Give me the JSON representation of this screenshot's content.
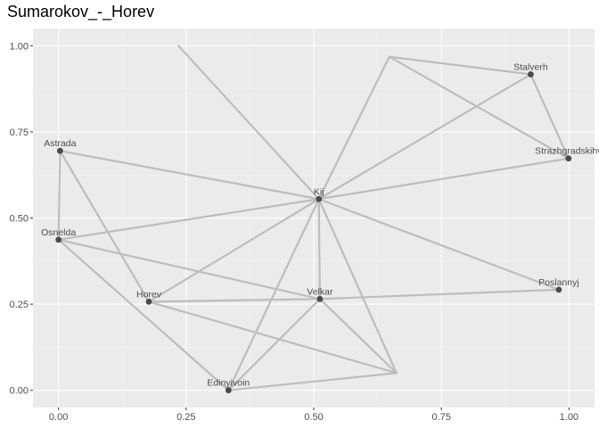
{
  "title": "Sumarokov_-_Horev",
  "chart_data": {
    "type": "network",
    "title": "Sumarokov_-_Horev",
    "xlim": [
      -0.05,
      1.05
    ],
    "ylim": [
      -0.05,
      1.05
    ],
    "x_ticks": [
      0.0,
      0.25,
      0.5,
      0.75,
      1.0
    ],
    "x_tick_labels": [
      "0.00",
      "0.25",
      "0.50",
      "0.75",
      "1.00"
    ],
    "y_ticks": [
      0.0,
      0.25,
      0.5,
      0.75,
      1.0
    ],
    "y_tick_labels": [
      "0.00",
      "0.25",
      "0.50",
      "0.75",
      "1.00"
    ],
    "grid": true,
    "nodes": [
      {
        "id": "Astrada",
        "label": "Astrada",
        "x": 0.003,
        "y": 0.695,
        "labeled": true
      },
      {
        "id": "Osnelda",
        "label": "Osnelda",
        "x": 0.0,
        "y": 0.437,
        "labeled": true
      },
      {
        "id": "Horev",
        "label": "Horev",
        "x": 0.177,
        "y": 0.257,
        "labeled": true
      },
      {
        "id": "Edinyivoin",
        "label": "Edinyivoin",
        "x": 0.333,
        "y": 0.0,
        "labeled": true
      },
      {
        "id": "Kij",
        "label": "Kij",
        "x": 0.51,
        "y": 0.555,
        "labeled": true
      },
      {
        "id": "Velkar",
        "label": "Velkar",
        "x": 0.512,
        "y": 0.265,
        "labeled": true
      },
      {
        "id": "Stalverh",
        "label": "Stalverh",
        "x": 0.925,
        "y": 0.917,
        "labeled": true
      },
      {
        "id": "Strazhgradskihv",
        "label": "Strazhgradskihv",
        "x": 0.999,
        "y": 0.673,
        "labeled": true
      },
      {
        "id": "Poslannyj",
        "label": "Poslannyj",
        "x": 0.98,
        "y": 0.292,
        "labeled": true
      },
      {
        "id": "n10",
        "label": "",
        "x": 0.235,
        "y": 1.0,
        "labeled": false
      },
      {
        "id": "n11",
        "label": "",
        "x": 0.648,
        "y": 0.968,
        "labeled": false
      },
      {
        "id": "n12",
        "label": "",
        "x": 0.662,
        "y": 0.05,
        "labeled": false
      }
    ],
    "edges": [
      [
        "n10",
        "Kij"
      ],
      [
        "Astrada",
        "Kij"
      ],
      [
        "Astrada",
        "Osnelda"
      ],
      [
        "Astrada",
        "Horev"
      ],
      [
        "Osnelda",
        "Kij"
      ],
      [
        "Osnelda",
        "Velkar"
      ],
      [
        "Osnelda",
        "Edinyivoin"
      ],
      [
        "Horev",
        "Kij"
      ],
      [
        "Horev",
        "Velkar"
      ],
      [
        "Horev",
        "n12"
      ],
      [
        "Kij",
        "Velkar"
      ],
      [
        "Kij",
        "Edinyivoin"
      ],
      [
        "Kij",
        "n12"
      ],
      [
        "Kij",
        "n11"
      ],
      [
        "Kij",
        "Stalverh"
      ],
      [
        "Kij",
        "Strazhgradskihv"
      ],
      [
        "Kij",
        "Poslannyj"
      ],
      [
        "Velkar",
        "Poslannyj"
      ],
      [
        "Velkar",
        "Edinyivoin"
      ],
      [
        "Velkar",
        "n12"
      ],
      [
        "Edinyivoin",
        "n12"
      ],
      [
        "n11",
        "Stalverh"
      ],
      [
        "n11",
        "Strazhgradskihv"
      ],
      [
        "Stalverh",
        "Strazhgradskihv"
      ]
    ]
  }
}
